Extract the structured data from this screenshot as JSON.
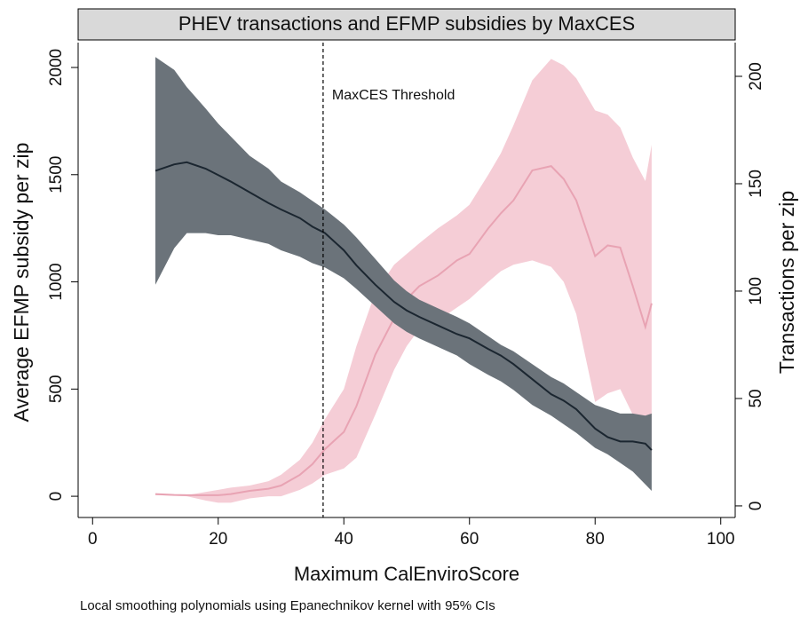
{
  "chart_data": {
    "type": "line",
    "title": "PHEV transactions and EFMP subsidies by MaxCES",
    "xlabel": "Maximum CalEnviroScore",
    "ylabel": "Average EFMP subsidy per zip",
    "y2label": "Transactions per zip",
    "note": "Local smoothing polynomials using Epanechnikov kernel with 95% CIs",
    "annotation": {
      "text": "MaxCES Threshold",
      "x": 36.7
    },
    "x": [
      10,
      13,
      15,
      18,
      20,
      22,
      25,
      28,
      30,
      33,
      35,
      37,
      40,
      42,
      45,
      48,
      50,
      52,
      55,
      58,
      60,
      63,
      65,
      67,
      70,
      73,
      75,
      77,
      80,
      82,
      84,
      86,
      88,
      89
    ],
    "series": [
      {
        "color": "#e8a3b3",
        "band_color": "#f5cdd6",
        "axis": "y",
        "values": [
          10,
          6,
          5,
          5,
          5,
          10,
          25,
          35,
          50,
          100,
          150,
          220,
          300,
          420,
          660,
          830,
          920,
          980,
          1030,
          1100,
          1130,
          1250,
          1320,
          1380,
          1520,
          1540,
          1480,
          1380,
          1120,
          1170,
          1160,
          980,
          790,
          900
        ],
        "upper": [
          10,
          7,
          5,
          20,
          30,
          40,
          50,
          70,
          100,
          170,
          250,
          360,
          500,
          700,
          950,
          1080,
          1130,
          1180,
          1250,
          1310,
          1360,
          1500,
          1600,
          1730,
          1940,
          2040,
          2010,
          1950,
          1800,
          1780,
          1720,
          1580,
          1470,
          1640
        ],
        "lower": [
          5,
          3,
          0,
          -20,
          -30,
          -30,
          -10,
          0,
          0,
          30,
          60,
          100,
          130,
          180,
          380,
          590,
          700,
          780,
          820,
          880,
          920,
          1000,
          1050,
          1080,
          1100,
          1070,
          1000,
          850,
          440,
          480,
          500,
          380,
          100,
          160
        ]
      },
      {
        "color": "#1b2630",
        "band_color": "#6b737a",
        "axis": "y2",
        "values": [
          156,
          159,
          160,
          157,
          154,
          151,
          146,
          141,
          138,
          134,
          130,
          127,
          119,
          112,
          103,
          95,
          91,
          88,
          84,
          80,
          78,
          73,
          70,
          66,
          59,
          52,
          49,
          45,
          36,
          32,
          30,
          30,
          29,
          26
        ],
        "upper": [
          209,
          203,
          195,
          185,
          178,
          172,
          163,
          157,
          151,
          146,
          142,
          138,
          131,
          125,
          115,
          105,
          100,
          96,
          92,
          88,
          85,
          79,
          75,
          72,
          66,
          60,
          57,
          53,
          47,
          45,
          43,
          43,
          42,
          43
        ],
        "lower": [
          103,
          120,
          127,
          127,
          126,
          126,
          124,
          122,
          119,
          116,
          113,
          111,
          106,
          101,
          93,
          85,
          81,
          78,
          74,
          70,
          66,
          61,
          58,
          54,
          47,
          42,
          38,
          34,
          27,
          24,
          20,
          16,
          10,
          7
        ]
      }
    ],
    "xlim": [
      -2.3,
      102.3
    ],
    "xticks": [
      0,
      20,
      40,
      60,
      80,
      100
    ],
    "ylim": [
      -99,
      2116
    ],
    "yticks": [
      0,
      500,
      1000,
      1500,
      2000
    ],
    "y2lim": [
      -5.4,
      215.7
    ],
    "y2ticks": [
      0,
      50,
      100,
      150,
      200
    ],
    "ylabel_color": "#f2b9c7",
    "y2label_color": "#1b2630"
  }
}
